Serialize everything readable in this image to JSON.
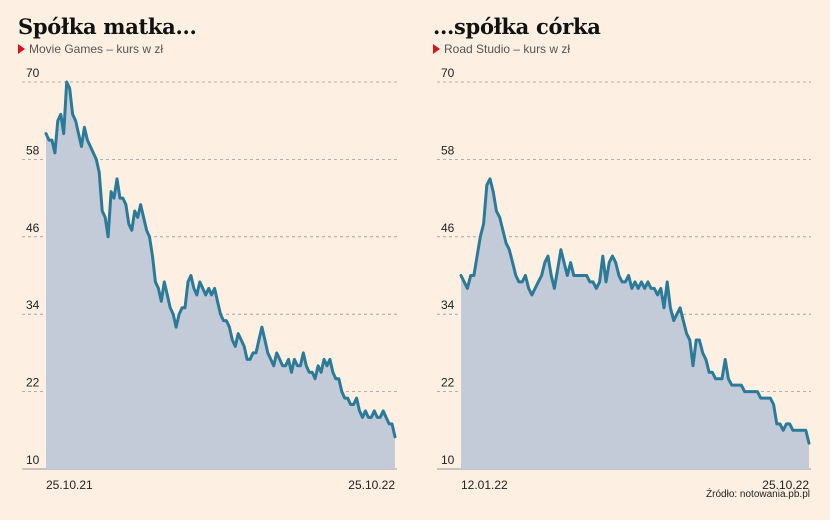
{
  "chart_data": [
    {
      "type": "area",
      "title": "Spółka matka...",
      "subtitle": "Movie Games – kurs w zł",
      "ylim": [
        10,
        70
      ],
      "yticks": [
        "10",
        "22",
        "34",
        "46",
        "58",
        "70"
      ],
      "xticks": [
        "25.10.21",
        "25.10.22"
      ],
      "color": "#2b7b98",
      "fill": "#c3cad8",
      "series": [
        {
          "values": [
            62,
            61,
            61,
            59,
            64,
            65,
            62,
            70,
            69,
            65,
            64,
            62,
            60,
            63,
            61,
            60,
            59,
            58,
            56,
            50,
            49,
            46,
            53,
            52,
            55,
            52,
            52,
            51,
            48,
            47,
            50,
            49,
            51,
            49,
            47,
            46,
            43,
            39,
            38,
            36,
            39,
            37,
            35,
            34,
            32,
            34,
            35,
            35,
            39,
            40,
            38,
            37,
            39,
            38,
            37,
            38,
            37,
            38,
            36,
            34,
            33,
            33,
            32,
            30,
            29,
            31,
            30,
            29,
            27,
            27,
            28,
            28,
            30,
            32,
            30,
            28,
            27,
            26,
            28,
            27,
            26,
            26,
            27,
            25,
            27,
            26,
            26,
            28,
            26,
            25,
            25,
            24,
            26,
            25,
            27,
            26,
            27,
            25,
            24,
            24,
            22,
            21,
            21,
            20,
            20,
            21,
            19,
            18,
            19,
            18,
            18,
            19,
            18,
            18,
            19,
            18,
            17,
            17,
            15
          ]
        }
      ]
    },
    {
      "type": "area",
      "title": "...spółka córka",
      "subtitle": "Road Studio – kurs w zł",
      "ylim": [
        10,
        70
      ],
      "yticks": [
        "10",
        "22",
        "34",
        "46",
        "58",
        "70"
      ],
      "xticks": [
        "12.01.22",
        "25.10.22"
      ],
      "color": "#2b7b98",
      "fill": "#c3cad8",
      "series": [
        {
          "values": [
            40,
            39,
            38,
            40,
            40,
            43,
            46,
            48,
            54,
            55,
            53,
            50,
            49,
            47,
            45,
            44,
            42,
            40,
            39,
            39,
            40,
            38,
            37,
            38,
            39,
            40,
            42,
            43,
            40,
            38,
            41,
            44,
            42,
            40,
            42,
            40,
            40,
            40,
            40,
            40,
            39,
            39,
            38,
            39,
            43,
            39,
            42,
            43,
            42,
            40,
            39,
            39,
            40,
            38,
            39,
            38,
            39,
            38,
            39,
            38,
            38,
            37,
            38,
            35,
            39,
            35,
            33,
            34,
            35,
            33,
            31,
            30,
            26,
            30,
            30,
            28,
            27,
            25,
            25,
            24,
            24,
            24,
            27,
            24,
            23,
            23,
            23,
            23,
            22,
            22,
            22,
            22,
            22,
            21,
            21,
            21,
            21,
            20,
            17,
            17,
            16,
            17,
            17,
            16,
            16,
            16,
            16,
            16,
            14
          ]
        }
      ]
    }
  ],
  "source": "Źródło: notowania.pb.pl"
}
